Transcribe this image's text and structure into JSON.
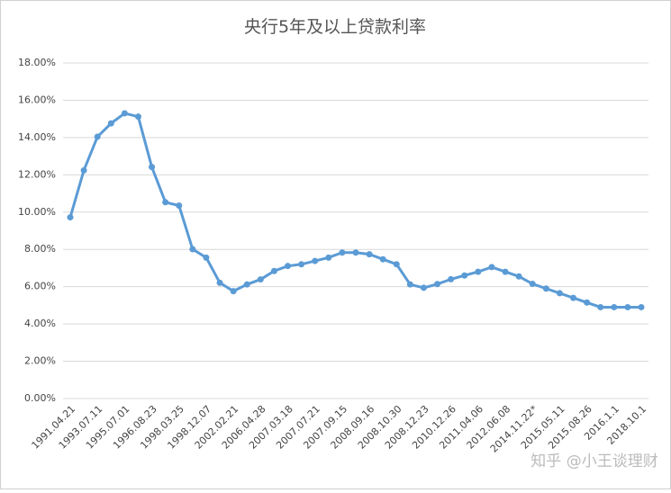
{
  "chart_data": {
    "type": "line",
    "title": "央行5年及以上贷款利率",
    "watermark": "知乎 @小王谈理财",
    "categories": [
      "1991.04.21",
      null,
      "1993.07.11",
      null,
      "1995.07.01",
      null,
      "1996.08.23",
      null,
      "1998.03.25",
      null,
      "1998.12.07",
      null,
      "2002.02.21",
      null,
      "2006.04.28",
      null,
      "2007.03.18",
      null,
      "2007.07.21",
      null,
      "2007.09.15",
      null,
      "2008.09.16",
      null,
      "2008.10.30",
      null,
      "2008.12.23",
      null,
      "2010.12.26",
      null,
      "2011.04.06",
      null,
      "2012.06.08",
      null,
      "2014.11.22*",
      null,
      "2015.05.11",
      null,
      "2015.08.26",
      null,
      "2016.1.1",
      null,
      "2018.10.1"
    ],
    "series": [
      {
        "name": "5年及以上贷款利率",
        "color": "#5b9bd5",
        "values": [
          9.72,
          12.24,
          14.04,
          14.76,
          15.3,
          15.12,
          12.42,
          10.53,
          10.35,
          8.01,
          7.56,
          6.21,
          5.76,
          6.12,
          6.39,
          6.84,
          7.11,
          7.2,
          7.38,
          7.56,
          7.83,
          7.83,
          7.74,
          7.47,
          7.2,
          6.12,
          5.94,
          6.14,
          6.4,
          6.6,
          6.8,
          7.05,
          6.8,
          6.55,
          6.15,
          5.9,
          5.65,
          5.4,
          5.15,
          4.9,
          4.9,
          4.9,
          4.9
        ]
      }
    ],
    "ylim": [
      0,
      18
    ],
    "yticks": [
      {
        "value": 0,
        "label": "0.00%"
      },
      {
        "value": 2,
        "label": "2.00%"
      },
      {
        "value": 4,
        "label": "4.00%"
      },
      {
        "value": 6,
        "label": "6.00%"
      },
      {
        "value": 8,
        "label": "8.00%"
      },
      {
        "value": 10,
        "label": "10.00%"
      },
      {
        "value": 12,
        "label": "12.00%"
      },
      {
        "value": 14,
        "label": "14.00%"
      },
      {
        "value": 16,
        "label": "16.00%"
      },
      {
        "value": 18,
        "label": "18.00%"
      }
    ],
    "grid": true
  }
}
